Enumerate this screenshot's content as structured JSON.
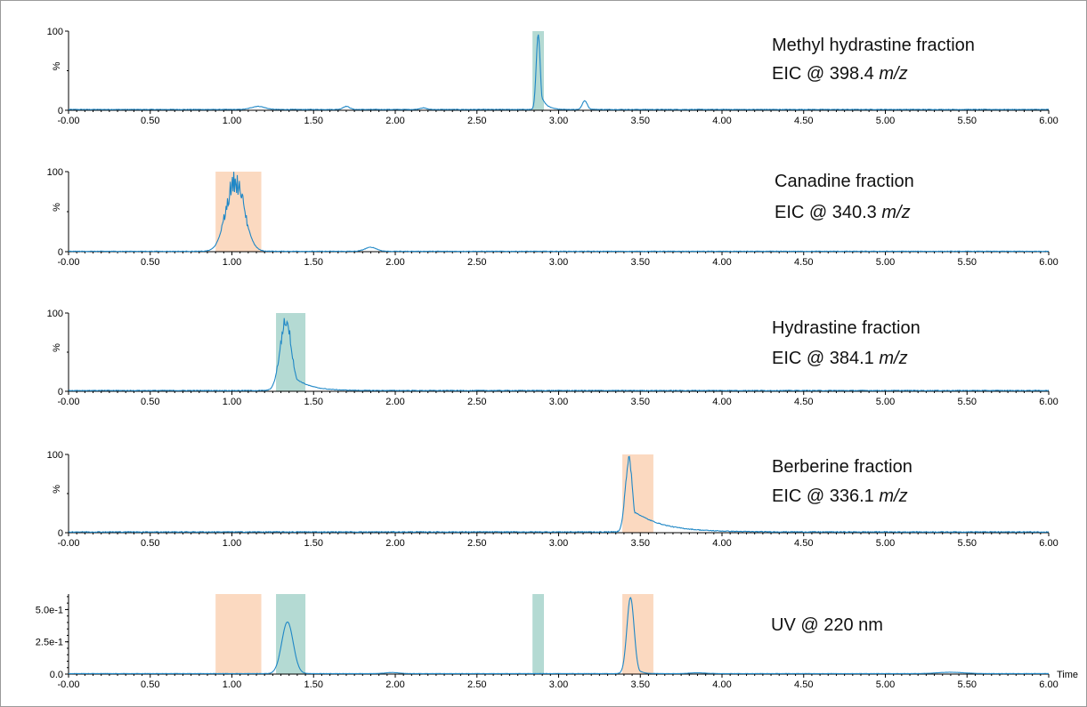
{
  "colors": {
    "trace": "#1f87c6",
    "orange_band": "#fbd9c0",
    "green_band": "#b4dad3",
    "axis": "#000000",
    "frame": "#9a9a9a"
  },
  "chart_data": [
    {
      "type": "line",
      "title_line1": "Methyl hydrastine fraction",
      "title_line2_prefix": "EIC @ 398.4 ",
      "title_line2_unit": "m/z",
      "ylabel": "%",
      "xlim": [
        0,
        6
      ],
      "ylim": [
        0,
        100
      ],
      "yticks": [
        "0",
        "100"
      ],
      "xticks": [
        "-0.00",
        "0.50",
        "1.00",
        "1.50",
        "2.00",
        "2.50",
        "3.00",
        "3.50",
        "4.00",
        "4.50",
        "5.00",
        "5.50",
        "6.00"
      ],
      "bands": [
        {
          "x0": 2.84,
          "x1": 2.91,
          "color": "green"
        }
      ],
      "peaks": [
        {
          "center": 2.875,
          "height": 95,
          "width": 0.012,
          "tail": 0.03
        },
        {
          "center": 1.16,
          "height": 4,
          "width": 0.04,
          "tail": 0.02
        },
        {
          "center": 1.7,
          "height": 4,
          "width": 0.02,
          "tail": 0.01
        },
        {
          "center": 2.17,
          "height": 2,
          "width": 0.02,
          "tail": 0.01
        },
        {
          "center": 3.16,
          "height": 11,
          "width": 0.015,
          "tail": 0.02
        }
      ],
      "baseline": 1,
      "noise": 0.3
    },
    {
      "type": "line",
      "title_line1": "Canadine fraction",
      "title_line2_prefix": "EIC @ 340.3 ",
      "title_line2_unit": "m/z",
      "ylabel": "%",
      "xlim": [
        0,
        6
      ],
      "ylim": [
        0,
        100
      ],
      "yticks": [
        "0",
        "100"
      ],
      "xticks": [
        "-0.00",
        "0.50",
        "1.00",
        "1.50",
        "2.00",
        "2.50",
        "3.00",
        "3.50",
        "4.00",
        "4.50",
        "5.00",
        "5.50",
        "6.00"
      ],
      "bands": [
        {
          "x0": 0.9,
          "x1": 1.18,
          "color": "orange"
        }
      ],
      "peaks": [
        {
          "center": 1.02,
          "height": 88,
          "width": 0.055,
          "tail": 0.04
        },
        {
          "center": 1.85,
          "height": 5,
          "width": 0.035,
          "tail": 0.02
        }
      ],
      "baseline": 0.5,
      "noise": 0.3,
      "peak_noise": 14
    },
    {
      "type": "line",
      "title_line1": "Hydrastine fraction",
      "title_line2_prefix": "EIC @ 384.1 ",
      "title_line2_unit": "m/z",
      "ylabel": "%",
      "xlim": [
        0,
        6
      ],
      "ylim": [
        0,
        100
      ],
      "yticks": [
        "0",
        "100"
      ],
      "xticks": [
        "-0.00",
        "0.50",
        "1.00",
        "1.50",
        "2.00",
        "2.50",
        "3.00",
        "3.50",
        "4.00",
        "4.50",
        "5.00",
        "5.50",
        "6.00"
      ],
      "bands": [
        {
          "x0": 1.27,
          "x1": 1.45,
          "color": "green"
        }
      ],
      "peaks": [
        {
          "center": 1.33,
          "height": 90,
          "width": 0.035,
          "tail": 0.09
        }
      ],
      "baseline": 1,
      "noise": 0.4,
      "peak_noise": 9
    },
    {
      "type": "line",
      "title_line1": "Berberine fraction",
      "title_line2_prefix": "EIC @ 336.1 ",
      "title_line2_unit": "m/z",
      "ylabel": "%",
      "xlim": [
        0,
        6
      ],
      "ylim": [
        0,
        100
      ],
      "yticks": [
        "0",
        "100"
      ],
      "xticks": [
        "-0.00",
        "0.50",
        "1.00",
        "1.50",
        "2.00",
        "2.50",
        "3.00",
        "3.50",
        "4.00",
        "4.50",
        "5.00",
        "5.50",
        "6.00"
      ],
      "bands": [
        {
          "x0": 3.39,
          "x1": 3.58,
          "color": "orange"
        }
      ],
      "peaks": [
        {
          "center": 3.43,
          "height": 92,
          "width": 0.022,
          "tail": 0.17
        }
      ],
      "baseline": 1,
      "noise": 0.5,
      "peak_noise": 6
    },
    {
      "type": "line",
      "title_line1": "UV @ 220 nm",
      "title_line2_prefix": "",
      "title_line2_unit": "",
      "ylabel": "",
      "xlabel": "Time",
      "xlim": [
        0,
        6
      ],
      "ylim": [
        0,
        0.62
      ],
      "yticks": [
        "0.0",
        "2.5e-1",
        "5.0e-1"
      ],
      "ytick_values": [
        0,
        0.25,
        0.5
      ],
      "xticks": [
        "-0.00",
        "0.50",
        "1.00",
        "1.50",
        "2.00",
        "2.50",
        "3.00",
        "3.50",
        "4.00",
        "4.50",
        "5.00",
        "5.50",
        "6.00"
      ],
      "bands": [
        {
          "x0": 0.9,
          "x1": 1.18,
          "color": "orange"
        },
        {
          "x0": 1.27,
          "x1": 1.45,
          "color": "green"
        },
        {
          "x0": 2.84,
          "x1": 2.91,
          "color": "green"
        },
        {
          "x0": 3.39,
          "x1": 3.58,
          "color": "orange"
        }
      ],
      "peaks": [
        {
          "center": 1.34,
          "height": 0.4,
          "width": 0.035,
          "tail": 0.02
        },
        {
          "center": 3.44,
          "height": 0.59,
          "width": 0.022,
          "tail": 0.025
        },
        {
          "center": 1.98,
          "height": 0.008,
          "width": 0.04,
          "tail": 0.02
        },
        {
          "center": 3.85,
          "height": 0.006,
          "width": 0.05,
          "tail": 0.05
        },
        {
          "center": 5.4,
          "height": 0.01,
          "width": 0.08,
          "tail": 0.05
        }
      ],
      "baseline": 0.004,
      "noise": 0.0008
    }
  ]
}
